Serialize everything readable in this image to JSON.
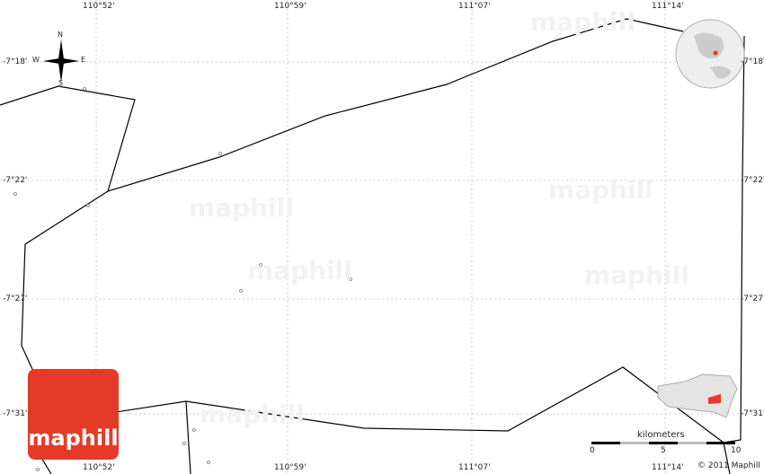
{
  "map": {
    "lon_labels": [
      "110°52'",
      "110°59'",
      "111°07'",
      "111°14'"
    ],
    "lat_labels": [
      "-7°18'",
      "-7°22'",
      "-7°27'",
      "-7°31'"
    ],
    "compass": {
      "n": "N",
      "s": "S",
      "e": "E",
      "w": "W"
    },
    "watermark": "maphill",
    "logo": "maphill",
    "scale": {
      "unit": "kilometers",
      "ticks": [
        "0",
        "5",
        "10"
      ]
    },
    "copyright": "© 2011 Maphill",
    "highlight_color": "#e53a27"
  }
}
